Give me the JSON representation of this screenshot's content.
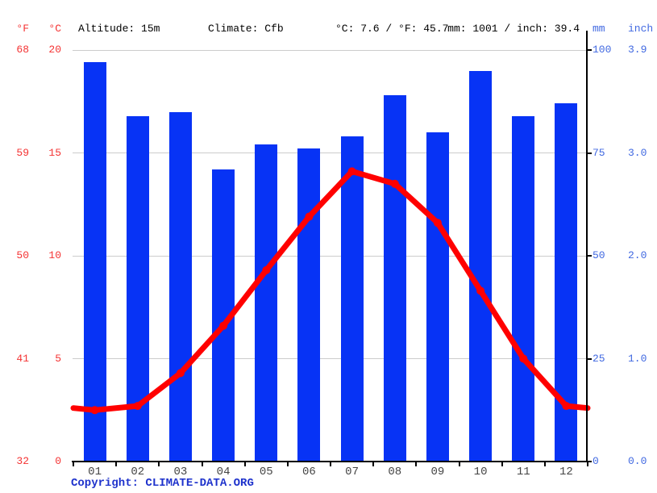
{
  "header": {
    "f_symbol": "°F",
    "c_symbol": "°C",
    "altitude": "Altitude: 15m",
    "climate": "Climate: Cfb",
    "temp_summary": "°C: 7.6 / °F: 45.7",
    "precip_summary": "mm: 1001 / inch: 39.4",
    "mm_symbol": "mm",
    "inch_symbol": "inch"
  },
  "footer": {
    "copyright_prefix": "Copyright: ",
    "copyright_link": "CLIMATE-DATA.ORG"
  },
  "colors": {
    "bar_blue": "#0733f5",
    "line_red": "#ff0000",
    "left_axis_red": "#f43333",
    "right_axis_blue": "#4169e1",
    "copyright_blue": "#1e32cc",
    "gridline_gray": "#cccccc",
    "month_label_gray": "#444444"
  },
  "chart_data": {
    "type": "bar+line",
    "title": "",
    "categories": [
      "01",
      "02",
      "03",
      "04",
      "05",
      "06",
      "07",
      "08",
      "09",
      "10",
      "11",
      "12"
    ],
    "series": [
      {
        "name": "Precipitation (mm)",
        "type": "bar",
        "values": [
          97,
          84,
          85,
          71,
          77,
          76,
          79,
          89,
          80,
          95,
          84,
          87
        ]
      },
      {
        "name": "Temperature (°C)",
        "type": "line",
        "values": [
          2.5,
          2.7,
          4.3,
          6.6,
          9.3,
          11.9,
          14.1,
          13.5,
          11.6,
          8.3,
          5.0,
          2.7
        ],
        "edge_left": 2.6,
        "edge_right": 2.6
      }
    ],
    "temp_axis": {
      "c_ticks": [
        "20",
        "15",
        "10",
        "5",
        "0"
      ],
      "f_ticks": [
        "68",
        "59",
        "50",
        "41",
        "32"
      ],
      "range_c": [
        0,
        20
      ]
    },
    "precip_axis": {
      "mm_ticks": [
        "100",
        "75",
        "50",
        "25",
        "0"
      ],
      "inch_ticks": [
        "3.9",
        "3.0",
        "2.0",
        "1.0",
        "0.0"
      ],
      "range_mm": [
        0,
        100
      ]
    },
    "legend": "none",
    "grid": "horizontal"
  }
}
